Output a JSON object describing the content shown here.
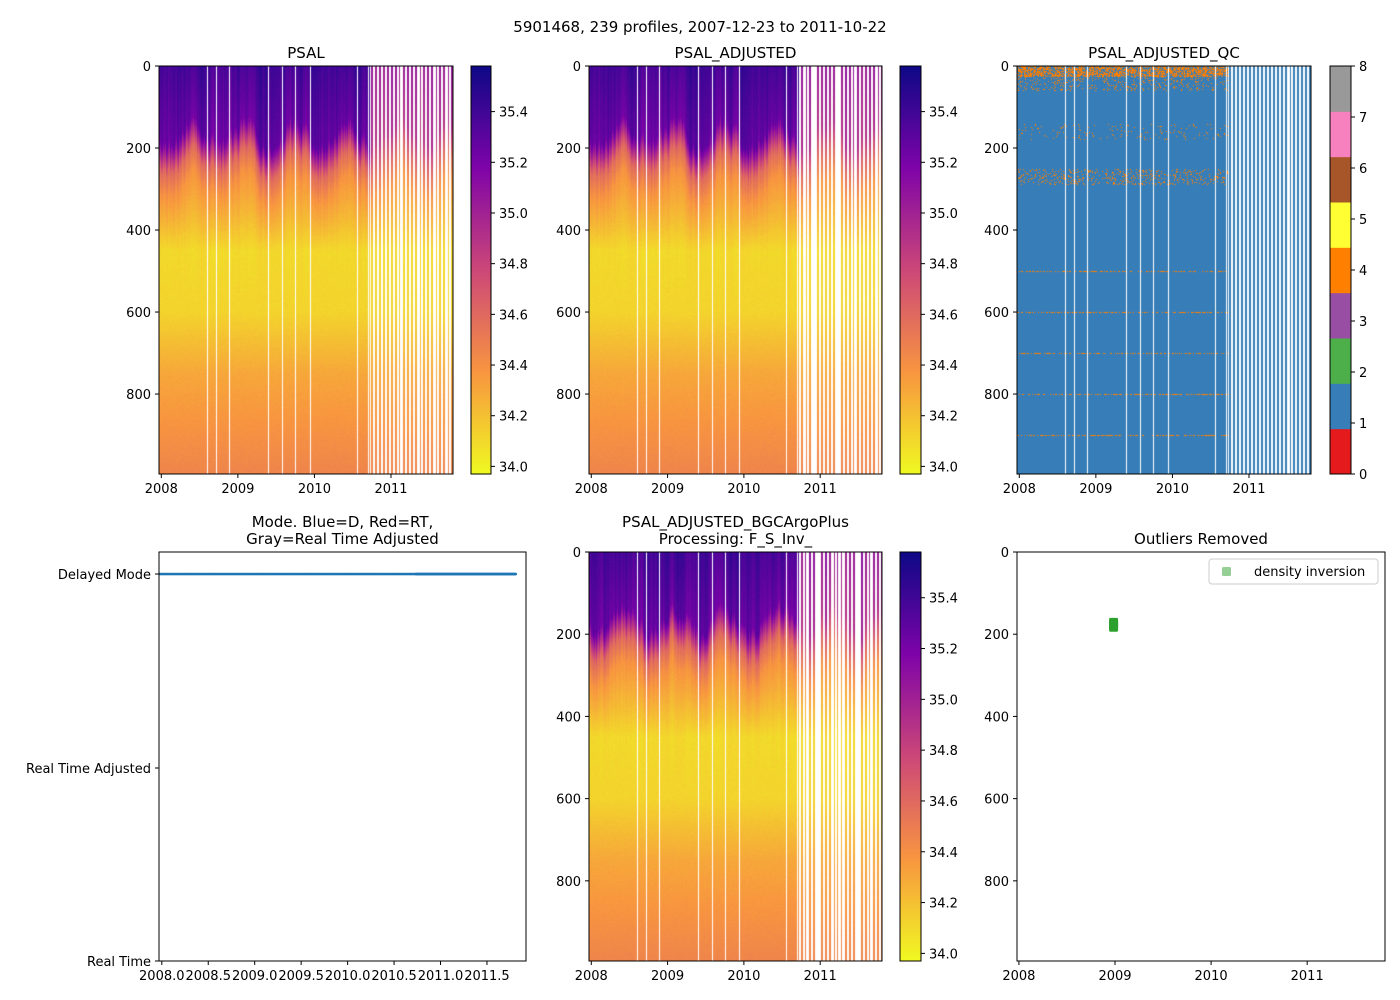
{
  "figure_title": "5901468, 239 profiles, 2007-12-23 to 2011-10-22",
  "colors": {
    "plasma_r": [
      "#f0f921",
      "#f89540",
      "#cc4778",
      "#7e03a8",
      "#0d0887"
    ],
    "qc": [
      "#e41a1c",
      "#377eb8",
      "#4daf4a",
      "#984ea3",
      "#ff7f00",
      "#ffff33",
      "#a65628",
      "#f781bf",
      "#999999"
    ],
    "mode_dot": "#1f77b4",
    "outlier": "#2ca02c"
  },
  "chart_data": [
    {
      "id": "psal",
      "type": "heatmap",
      "title": [
        "PSAL"
      ],
      "variable": "PSAL",
      "xlim": [
        2007.97,
        2011.81
      ],
      "ylim": [
        995,
        0
      ],
      "xticks": [
        {
          "v": 2008,
          "label": "2008"
        },
        {
          "v": 2009,
          "label": "2009"
        },
        {
          "v": 2010,
          "label": "2010"
        },
        {
          "v": 2011,
          "label": "2011"
        }
      ],
      "yticks": [
        {
          "v": 0,
          "label": "0"
        },
        {
          "v": 200,
          "label": "200"
        },
        {
          "v": 400,
          "label": "400"
        },
        {
          "v": 600,
          "label": "600"
        },
        {
          "v": 800,
          "label": "800"
        }
      ],
      "colorbar": {
        "range": [
          33.97,
          35.58
        ],
        "ticks": [
          {
            "v": 34.0,
            "label": "34.0"
          },
          {
            "v": 34.2,
            "label": "34.2"
          },
          {
            "v": 34.4,
            "label": "34.4"
          },
          {
            "v": 34.6,
            "label": "34.6"
          },
          {
            "v": 34.8,
            "label": "34.8"
          },
          {
            "v": 35.0,
            "label": "35.0"
          },
          {
            "v": 35.2,
            "label": "35.2"
          },
          {
            "v": 35.4,
            "label": "35.4"
          }
        ]
      }
    },
    {
      "id": "psal_adj",
      "type": "heatmap",
      "title": [
        "PSAL_ADJUSTED"
      ],
      "variable": "PSAL_ADJUSTED",
      "xlim": [
        2007.97,
        2011.81
      ],
      "ylim": [
        995,
        0
      ],
      "xticks": [
        {
          "v": 2008,
          "label": "2008"
        },
        {
          "v": 2009,
          "label": "2009"
        },
        {
          "v": 2010,
          "label": "2010"
        },
        {
          "v": 2011,
          "label": "2011"
        }
      ],
      "yticks": [
        {
          "v": 0,
          "label": "0"
        },
        {
          "v": 200,
          "label": "200"
        },
        {
          "v": 400,
          "label": "400"
        },
        {
          "v": 600,
          "label": "600"
        },
        {
          "v": 800,
          "label": "800"
        }
      ],
      "colorbar": {
        "range": [
          33.97,
          35.58
        ],
        "ticks": [
          {
            "v": 34.0,
            "label": "34.0"
          },
          {
            "v": 34.2,
            "label": "34.2"
          },
          {
            "v": 34.4,
            "label": "34.4"
          },
          {
            "v": 34.6,
            "label": "34.6"
          },
          {
            "v": 34.8,
            "label": "34.8"
          },
          {
            "v": 35.0,
            "label": "35.0"
          },
          {
            "v": 35.2,
            "label": "35.2"
          },
          {
            "v": 35.4,
            "label": "35.4"
          }
        ]
      }
    },
    {
      "id": "psal_adj_qc",
      "type": "heatmap",
      "title": [
        "PSAL_ADJUSTED_QC"
      ],
      "variable": "PSAL_ADJUSTED_QC",
      "xlim": [
        2007.97,
        2011.81
      ],
      "ylim": [
        995,
        0
      ],
      "dominant_qc": 1,
      "secondary_qc": 4,
      "xticks": [
        {
          "v": 2008,
          "label": "2008"
        },
        {
          "v": 2009,
          "label": "2009"
        },
        {
          "v": 2010,
          "label": "2010"
        },
        {
          "v": 2011,
          "label": "2011"
        }
      ],
      "yticks": [
        {
          "v": 0,
          "label": "0"
        },
        {
          "v": 200,
          "label": "200"
        },
        {
          "v": 400,
          "label": "400"
        },
        {
          "v": 600,
          "label": "600"
        },
        {
          "v": 800,
          "label": "800"
        }
      ],
      "colorbar": {
        "range": [
          0,
          8
        ],
        "discrete": true,
        "ticks": [
          {
            "v": 0,
            "label": "0"
          },
          {
            "v": 1,
            "label": "1"
          },
          {
            "v": 2,
            "label": "2"
          },
          {
            "v": 3,
            "label": "3"
          },
          {
            "v": 4,
            "label": "4"
          },
          {
            "v": 5,
            "label": "5"
          },
          {
            "v": 6,
            "label": "6"
          },
          {
            "v": 7,
            "label": "7"
          },
          {
            "v": 8,
            "label": "8"
          }
        ]
      }
    },
    {
      "id": "mode",
      "type": "scatter",
      "title": [
        "Mode. Blue=D, Red=RT,",
        "Gray=Real Time Adjusted"
      ],
      "xlim": [
        2007.97,
        2011.92
      ],
      "ylim": [
        0,
        2
      ],
      "series": [
        {
          "name": "Delayed Mode",
          "y": 2,
          "x_range": [
            2007.98,
            2011.81
          ]
        }
      ],
      "xticks": [
        {
          "v": 2008.0,
          "label": "2008.0"
        },
        {
          "v": 2008.5,
          "label": "2008.5"
        },
        {
          "v": 2009.0,
          "label": "2009.0"
        },
        {
          "v": 2009.5,
          "label": "2009.5"
        },
        {
          "v": 2010.0,
          "label": "2010.0"
        },
        {
          "v": 2010.5,
          "label": "2010.5"
        },
        {
          "v": 2011.0,
          "label": "2011.0"
        },
        {
          "v": 2011.5,
          "label": "2011.5"
        }
      ],
      "yticks": [
        {
          "v": 2,
          "label": "Delayed Mode"
        },
        {
          "v": 1,
          "label": "Real Time Adjusted"
        },
        {
          "v": 0,
          "label": "Real Time"
        }
      ]
    },
    {
      "id": "bgc",
      "type": "heatmap",
      "title": [
        "PSAL_ADJUSTED_BGCArgoPlus",
        "Processing: F_S_Inv_"
      ],
      "variable": "PSAL_ADJUSTED_BGCArgoPlus",
      "xlim": [
        2007.97,
        2011.81
      ],
      "ylim": [
        995,
        0
      ],
      "xticks": [
        {
          "v": 2008,
          "label": "2008"
        },
        {
          "v": 2009,
          "label": "2009"
        },
        {
          "v": 2010,
          "label": "2010"
        },
        {
          "v": 2011,
          "label": "2011"
        }
      ],
      "yticks": [
        {
          "v": 0,
          "label": "0"
        },
        {
          "v": 200,
          "label": "200"
        },
        {
          "v": 400,
          "label": "400"
        },
        {
          "v": 600,
          "label": "600"
        },
        {
          "v": 800,
          "label": "800"
        }
      ],
      "colorbar": {
        "range": [
          33.97,
          35.58
        ],
        "ticks": [
          {
            "v": 34.0,
            "label": "34.0"
          },
          {
            "v": 34.2,
            "label": "34.2"
          },
          {
            "v": 34.4,
            "label": "34.4"
          },
          {
            "v": 34.6,
            "label": "34.6"
          },
          {
            "v": 34.8,
            "label": "34.8"
          },
          {
            "v": 35.0,
            "label": "35.0"
          },
          {
            "v": 35.2,
            "label": "35.2"
          },
          {
            "v": 35.4,
            "label": "35.4"
          }
        ]
      }
    },
    {
      "id": "outliers",
      "type": "scatter",
      "title": [
        "Outliers Removed"
      ],
      "xlim": [
        2007.98,
        2011.81
      ],
      "ylim": [
        995,
        0
      ],
      "series": [
        {
          "name": "density inversion",
          "points": [
            {
              "x": 2008.98,
              "y": 170
            },
            {
              "x": 2008.98,
              "y": 176
            },
            {
              "x": 2008.98,
              "y": 182
            }
          ]
        }
      ],
      "legend": {
        "placement": "top-right",
        "label": "density inversion"
      },
      "xticks": [
        {
          "v": 2008,
          "label": "2008"
        },
        {
          "v": 2009,
          "label": "2009"
        },
        {
          "v": 2010,
          "label": "2010"
        },
        {
          "v": 2011,
          "label": "2011"
        }
      ],
      "yticks": [
        {
          "v": 0,
          "label": "0"
        },
        {
          "v": 200,
          "label": "200"
        },
        {
          "v": 400,
          "label": "400"
        },
        {
          "v": 600,
          "label": "600"
        },
        {
          "v": 800,
          "label": "800"
        }
      ]
    }
  ],
  "profile_summary": {
    "depth_m": [
      0,
      150,
      250,
      300,
      450,
      600,
      750,
      1000
    ],
    "psal_typical": [
      35.35,
      35.25,
      34.6,
      34.4,
      34.1,
      34.12,
      34.3,
      34.45
    ],
    "dense_sampling_until": 2010.72
  }
}
